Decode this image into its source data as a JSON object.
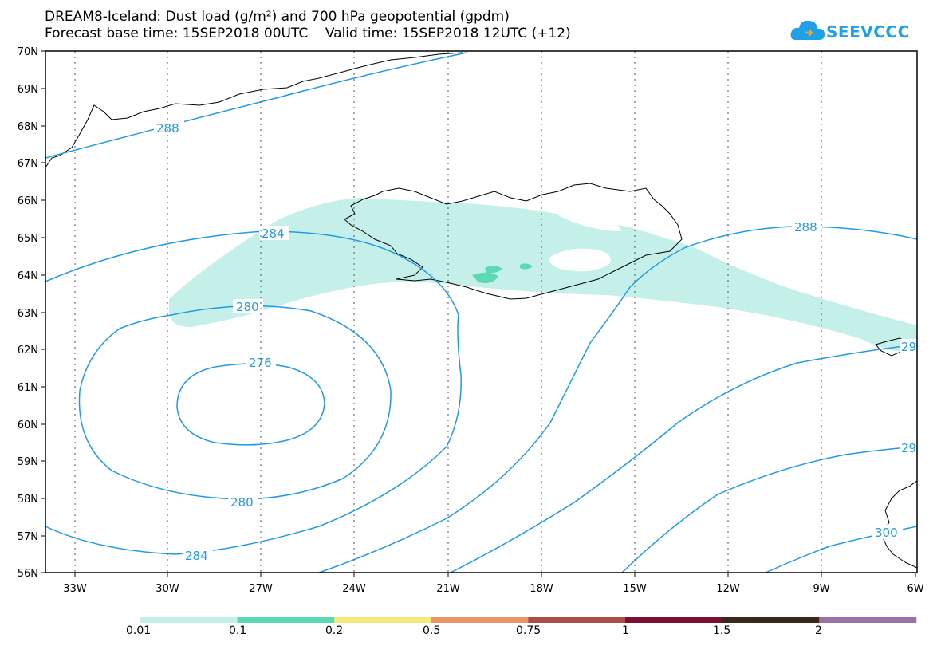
{
  "title": {
    "line1": "DREAM8-Iceland: Dust load (g/m²) and 700 hPa geopotential (gpdm)",
    "line2": "Forecast base time: 15SEP2018 00UTC    Valid time: 15SEP2018 12UTC (+12)"
  },
  "logo": {
    "text": "SEEVCCC",
    "icon": "cloud-icon"
  },
  "axes": {
    "lat_labels": [
      "70N",
      "69N",
      "68N",
      "67N",
      "66N",
      "65N",
      "64N",
      "63N",
      "62N",
      "61N",
      "60N",
      "59N",
      "58N",
      "57N",
      "56N"
    ],
    "lon_labels": [
      "33W",
      "30W",
      "27W",
      "24W",
      "21W",
      "18W",
      "15W",
      "12W",
      "9W",
      "6W"
    ]
  },
  "contour_labels": [
    "288",
    "284",
    "280",
    "276",
    "280",
    "284",
    "288",
    "29",
    "29",
    "300"
  ],
  "colorbar": {
    "colors": [
      "#c5f0ea",
      "#5dd8b4",
      "#f5e97a",
      "#e8956c",
      "#a85048",
      "#7d0e30",
      "#3a281a",
      "#9a72a4"
    ],
    "labels": [
      "0.01",
      "0.1",
      "0.2",
      "0.5",
      "0.75",
      "1",
      "1.5",
      "2"
    ]
  },
  "colors": {
    "contour": "#1f9be6",
    "dust_light": "#c5f0ea",
    "dust_medium": "#5dd8b4"
  }
}
